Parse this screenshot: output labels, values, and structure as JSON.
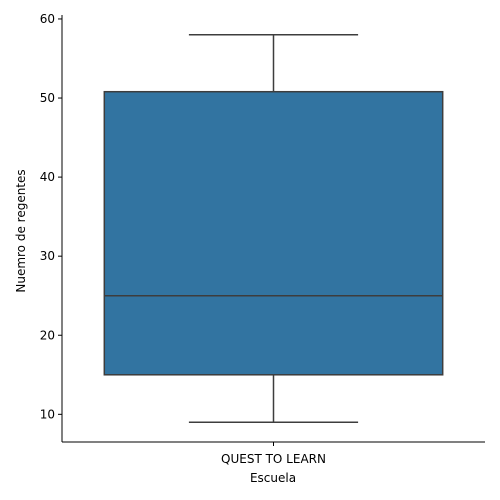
{
  "chart_data": {
    "type": "box",
    "title": "",
    "xlabel": "Escuela",
    "ylabel": "Nuemro de regentes",
    "categories": [
      "QUEST TO LEARN"
    ],
    "boxes": [
      {
        "category": "QUEST TO LEARN",
        "whisker_low": 9,
        "q1": 15,
        "median": 25,
        "q3": 50.8,
        "whisker_high": 58
      }
    ],
    "ylim": [
      6.5,
      60.5
    ],
    "yticks": [
      10,
      20,
      30,
      40,
      50,
      60
    ],
    "grid": false,
    "legend": "none",
    "colors": {
      "box_fill": "#3274a1",
      "lines": "#3d3d3d",
      "axes": "#000000"
    }
  }
}
